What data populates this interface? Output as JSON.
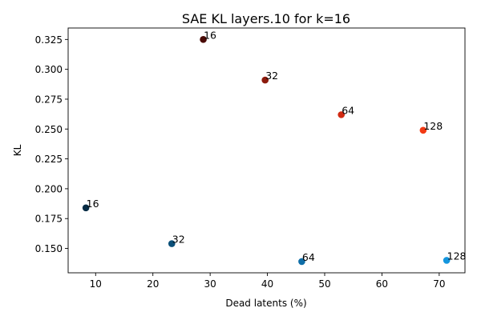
{
  "chart_data": {
    "type": "scatter",
    "title": "SAE KL layers.10 for k=16",
    "xlabel": "Dead latents (%)",
    "ylabel": "KL",
    "xlim": [
      5.2,
      74.5
    ],
    "ylim": [
      0.1296,
      0.3346
    ],
    "xticks": [
      10,
      20,
      30,
      40,
      50,
      60,
      70
    ],
    "yticks": [
      0.15,
      0.175,
      0.2,
      0.225,
      0.25,
      0.275,
      0.3,
      0.325
    ],
    "grid": false,
    "legend": false,
    "points": [
      {
        "x": 28.8,
        "y": 0.325,
        "label": "16",
        "color": "#4a0a06"
      },
      {
        "x": 39.6,
        "y": 0.291,
        "label": "32",
        "color": "#8c1a0c"
      },
      {
        "x": 52.9,
        "y": 0.262,
        "label": "64",
        "color": "#d12a12"
      },
      {
        "x": 67.2,
        "y": 0.249,
        "label": "128",
        "color": "#f23a14"
      },
      {
        "x": 8.3,
        "y": 0.184,
        "label": "16",
        "color": "#062c45"
      },
      {
        "x": 23.3,
        "y": 0.154,
        "label": "32",
        "color": "#0a4f78"
      },
      {
        "x": 46.0,
        "y": 0.139,
        "label": "64",
        "color": "#0f6ea8"
      },
      {
        "x": 71.3,
        "y": 0.14,
        "label": "128",
        "color": "#1496de"
      }
    ]
  }
}
